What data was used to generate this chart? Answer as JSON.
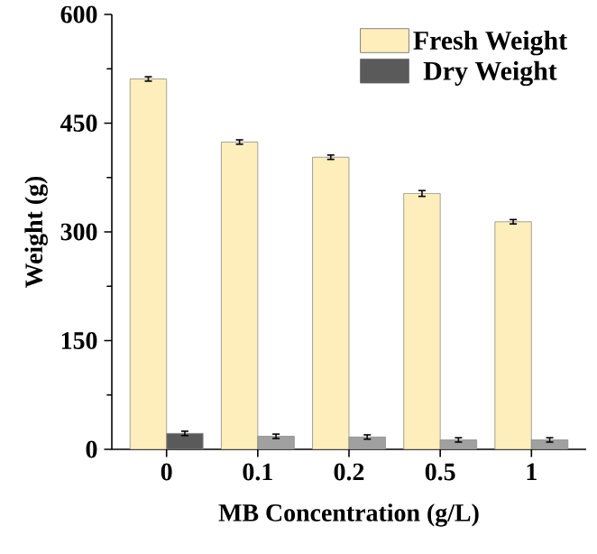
{
  "chart_data": {
    "type": "bar",
    "xlabel": "MB Concentration (g/L)",
    "ylabel": "Weight (g)",
    "categories": [
      "0",
      "0.1",
      "0.2",
      "0.5",
      "1"
    ],
    "series": [
      {
        "name": "Fresh Weight",
        "color": "#fdeebb",
        "values": [
          511,
          424,
          403,
          353,
          314
        ],
        "errors": [
          3,
          3,
          3,
          4,
          3
        ]
      },
      {
        "name": "Dry Weight",
        "color": "#5a5a5a",
        "colors": [
          "#5a5a5a",
          "#a0a0a0",
          "#a0a0a0",
          "#a0a0a0",
          "#a0a0a0"
        ],
        "values": [
          22,
          18,
          17,
          13,
          13
        ],
        "errors": [
          3,
          3,
          3,
          3,
          3
        ]
      }
    ],
    "ylim": [
      0,
      600
    ],
    "yticks": [
      0,
      150,
      300,
      450,
      600
    ],
    "legend": "top right",
    "grid": false
  }
}
